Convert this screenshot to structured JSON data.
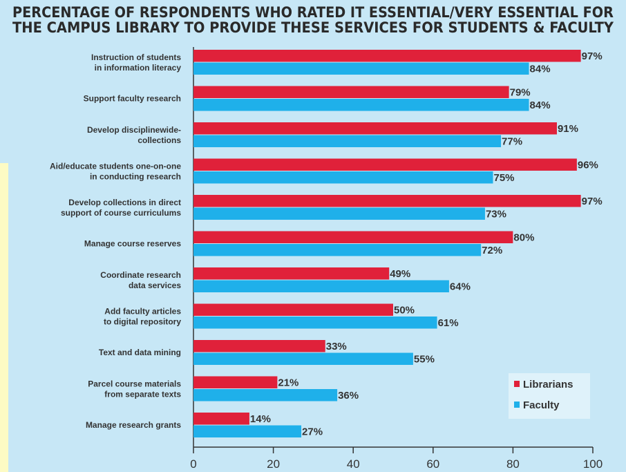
{
  "chart_data": {
    "type": "bar",
    "orientation": "horizontal",
    "title": "PERCENTAGE OF RESPONDENTS WHO RATED IT ESSENTIAL/VERY ESSENTIAL FOR THE CAMPUS LIBRARY TO PROVIDE THESE SERVICES FOR STUDENTS & FACULTY",
    "title_lines": [
      "PERCENTAGE OF RESPONDENTS WHO RATED IT ESSENTIAL/VERY ESSENTIAL FOR",
      "THE CAMPUS LIBRARY TO PROVIDE THESE SERVICES FOR STUDENTS & FACULTY"
    ],
    "categories": [
      [
        "Instruction of students",
        "in information literacy"
      ],
      [
        "Support faculty research"
      ],
      [
        "Develop disciplinewide-",
        "collections"
      ],
      [
        "Aid/educate students one-on-one",
        "in conducting research"
      ],
      [
        "Develop collections in direct",
        "support of course curriculums"
      ],
      [
        "Manage course reserves"
      ],
      [
        "Coordinate research",
        "data services"
      ],
      [
        "Add faculty articles",
        "to digital repository"
      ],
      [
        "Text and data mining"
      ],
      [
        "Parcel course materials",
        "from separate texts"
      ],
      [
        "Manage research grants"
      ]
    ],
    "series": [
      {
        "name": "Librarians",
        "color": "#e0213a",
        "values": [
          97,
          79,
          91,
          96,
          97,
          80,
          49,
          50,
          33,
          21,
          14
        ]
      },
      {
        "name": "Faculty",
        "color": "#1fb0ea",
        "values": [
          84,
          84,
          77,
          75,
          73,
          72,
          64,
          61,
          55,
          36,
          27
        ]
      }
    ],
    "value_suffix": "%",
    "xlim": [
      0,
      100
    ],
    "xticks": [
      0,
      20,
      40,
      60,
      80,
      100
    ],
    "xlabel": "",
    "ylabel": "",
    "legend_position": "bottom-right",
    "colors": {
      "plot_background": "#c7e7f6",
      "page_background": "#fdfbc4",
      "legend_background": "#dff2fa",
      "axis": "#333333"
    }
  }
}
